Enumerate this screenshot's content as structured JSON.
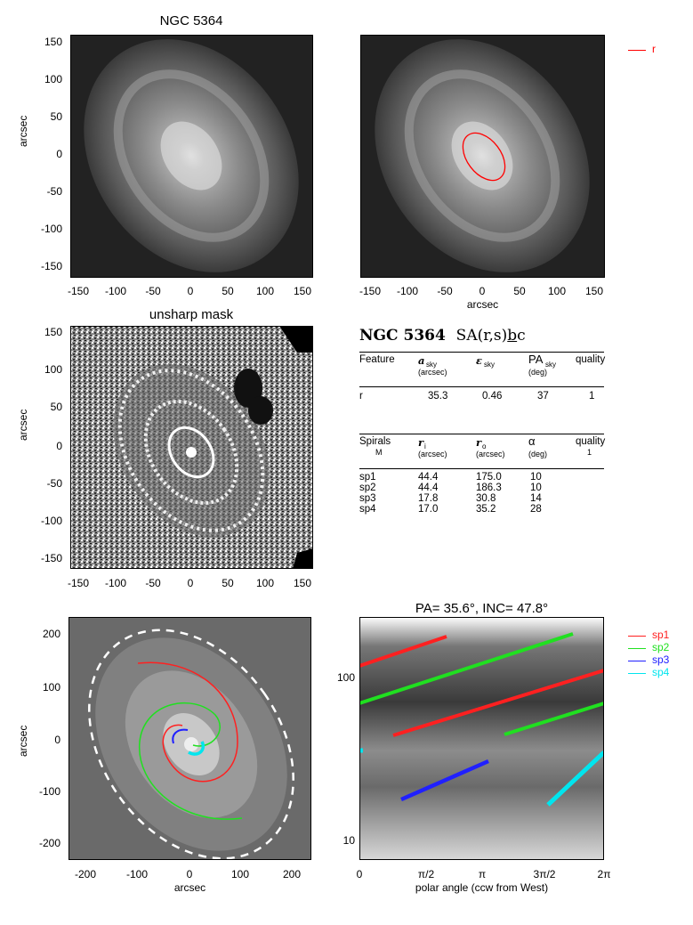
{
  "panels": {
    "p1": {
      "title": "NGC 5364",
      "ylabel": "arcsec",
      "xlabel": ""
    },
    "p2": {
      "xlabel": "arcsec",
      "legend": [
        {
          "label": "r",
          "color": "#ff0000"
        }
      ]
    },
    "p3": {
      "title": "unsharp mask",
      "ylabel": "arcsec"
    },
    "p5": {
      "ylabel": "arcsec",
      "xlabel": "arcsec"
    },
    "p6": {
      "title": "PA= 35.6°, INC= 47.8°",
      "xlabel": "polar angle (ccw from West)",
      "legend": [
        {
          "label": "sp1",
          "color": "#ff2020"
        },
        {
          "label": "sp2",
          "color": "#20e020"
        },
        {
          "label": "sp3",
          "color": "#2020ff"
        },
        {
          "label": "sp4",
          "color": "#00e5ee"
        }
      ]
    }
  },
  "ticks": {
    "small_x": [
      "-150",
      "-100",
      "-50",
      "0",
      "50",
      "100",
      "150"
    ],
    "small_y": [
      "150",
      "100",
      "50",
      "0",
      "-50",
      "-100",
      "-150"
    ],
    "big": [
      "200",
      "100",
      "0",
      "-100",
      "-200"
    ],
    "big_x": [
      "-200",
      "-100",
      "0",
      "100",
      "200"
    ],
    "polar_x": [
      "0",
      "π/2",
      "π",
      "3π/2",
      "2π"
    ],
    "log_y": [
      "100",
      "10"
    ]
  },
  "info": {
    "galaxy": "NGC 5364",
    "type_prefix": "SA(r,s)",
    "type_under": "b",
    "type_suffix": "c",
    "feat_headers": {
      "c1": "Feature",
      "c2": "a",
      "c2_sub": "sky",
      "c2_unit": "(arcsec)",
      "c3": "ε",
      "c3_sub": "sky",
      "c4": "PA",
      "c4_sub": "sky",
      "c4_unit": "(deg)",
      "c5": "quality"
    },
    "features": [
      {
        "name": "r",
        "a": "35.3",
        "eps": "0.46",
        "pa": "37",
        "q": "1"
      }
    ],
    "spiral_headers": {
      "c1": "Spirals",
      "c1_sub": "M",
      "c2": "r",
      "c2_sub": "i",
      "c2_unit": "(arcsec)",
      "c3": "r",
      "c3_sub": "o",
      "c3_unit": "(arcsec)",
      "c4": "α",
      "c4_unit": "(deg)",
      "c5": "quality",
      "c5_sub": "1"
    },
    "spirals": [
      {
        "name": "sp1",
        "ri": "44.4",
        "ro": "175.0",
        "alpha": "10"
      },
      {
        "name": "sp2",
        "ri": "44.4",
        "ro": "186.3",
        "alpha": "10"
      },
      {
        "name": "sp3",
        "ri": "17.8",
        "ro": "30.8",
        "alpha": "14"
      },
      {
        "name": "sp4",
        "ri": "17.0",
        "ro": "35.2",
        "alpha": "28"
      }
    ]
  }
}
